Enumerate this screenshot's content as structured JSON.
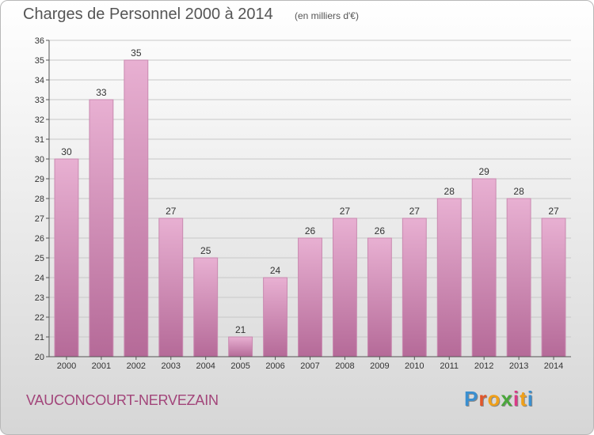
{
  "title": "Charges de Personnel 2000 à 2014",
  "unit_note": "(en milliers d'€)",
  "place": "VAUCONCOURT-NERVEZAIN",
  "logo": {
    "text": "Proxiti",
    "letter_colors": [
      "#3a8fd0",
      "#e2562a",
      "#f0a019",
      "#4aa73b",
      "#d93a86",
      "#f0a019",
      "#3a8fd0"
    ]
  },
  "colors": {
    "bar_light": "#e8b0d2",
    "bar_dark": "#b56a98",
    "grid": "#c8c8c8",
    "axis": "#555555",
    "text": "#333333"
  },
  "chart_data": {
    "type": "bar",
    "title": "Charges de Personnel 2000 à 2014",
    "subtitle": "(en milliers d'€)",
    "xlabel": "",
    "ylabel": "",
    "categories": [
      "2000",
      "2001",
      "2002",
      "2003",
      "2004",
      "2005",
      "2006",
      "2007",
      "2008",
      "2009",
      "2010",
      "2011",
      "2012",
      "2013",
      "2014"
    ],
    "values": [
      30,
      33,
      35,
      27,
      25,
      21,
      24,
      26,
      27,
      26,
      27,
      28,
      29,
      28,
      27
    ],
    "ylim": [
      20,
      36
    ],
    "yticks": [
      20,
      21,
      22,
      23,
      24,
      25,
      26,
      27,
      28,
      29,
      30,
      31,
      32,
      33,
      34,
      35,
      36
    ],
    "grid": true,
    "data_labels": true
  }
}
